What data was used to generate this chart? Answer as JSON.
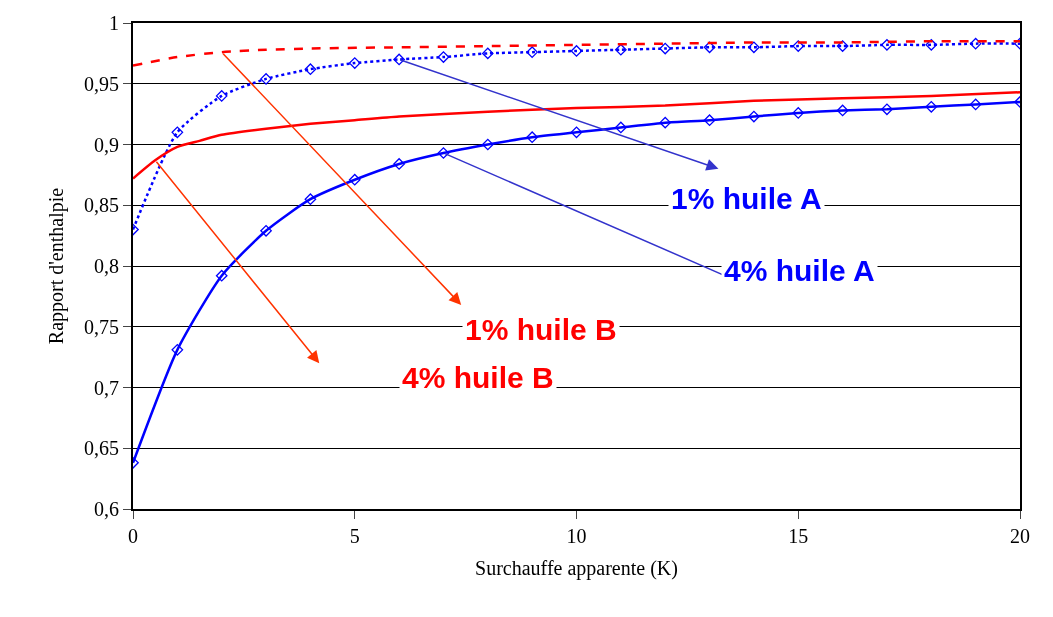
{
  "chart_data": {
    "type": "line",
    "xlabel": "Surchauffe apparente (K)",
    "ylabel": "Rapport d'enthalpie",
    "x": [
      0,
      1,
      2,
      3,
      4,
      5,
      6,
      7,
      8,
      9,
      10,
      11,
      12,
      13,
      14,
      15,
      16,
      17,
      18,
      19,
      20
    ],
    "series": [
      {
        "name": "1% huile A",
        "color": "#0000ff",
        "marker": "diamond",
        "line_style": "dotted",
        "values": [
          0.83,
          0.91,
          0.94,
          0.954,
          0.962,
          0.967,
          0.97,
          0.972,
          0.975,
          0.976,
          0.977,
          0.978,
          0.979,
          0.98,
          0.98,
          0.981,
          0.981,
          0.982,
          0.982,
          0.983,
          0.983
        ]
      },
      {
        "name": "4% huile A",
        "color": "#0000ff",
        "marker": "diamond",
        "line_style": "solid",
        "values": [
          0.638,
          0.731,
          0.792,
          0.829,
          0.855,
          0.871,
          0.884,
          0.893,
          0.9,
          0.906,
          0.91,
          0.914,
          0.918,
          0.92,
          0.923,
          0.926,
          0.928,
          0.929,
          0.931,
          0.933,
          0.935
        ]
      },
      {
        "name": "1% huile B",
        "color": "#ff0000",
        "marker": "none",
        "line_style": "dashed",
        "x": [
          0,
          1,
          2,
          3,
          4,
          6,
          8,
          10,
          12,
          14,
          16,
          18,
          20
        ],
        "values": [
          0.965,
          0.972,
          0.976,
          0.978,
          0.979,
          0.98,
          0.981,
          0.982,
          0.983,
          0.984,
          0.984,
          0.985,
          0.985
        ]
      },
      {
        "name": "4% huile B",
        "color": "#ff0000",
        "marker": "none",
        "line_style": "solid",
        "x": [
          0,
          0.5,
          1,
          1.5,
          2,
          3,
          4,
          5,
          6,
          8,
          10,
          12,
          14,
          16,
          18,
          20
        ],
        "values": [
          0.872,
          0.887,
          0.898,
          0.903,
          0.908,
          0.913,
          0.917,
          0.92,
          0.923,
          0.927,
          0.93,
          0.932,
          0.936,
          0.938,
          0.94,
          0.943
        ]
      }
    ],
    "xlim": [
      0,
      20
    ],
    "xticks": [
      0,
      5,
      10,
      15,
      20
    ],
    "ylim": [
      0.6,
      1
    ],
    "yticks": [
      {
        "value": 0.6,
        "label": "0,6"
      },
      {
        "value": 0.65,
        "label": "0,65"
      },
      {
        "value": 0.7,
        "label": "0,7"
      },
      {
        "value": 0.75,
        "label": "0,75"
      },
      {
        "value": 0.8,
        "label": "0,8"
      },
      {
        "value": 0.85,
        "label": "0,85"
      },
      {
        "value": 0.9,
        "label": "0,9"
      },
      {
        "value": 0.95,
        "label": "0,95"
      },
      {
        "value": 1,
        "label": "1"
      }
    ],
    "grid": "y",
    "legend": false
  }
}
